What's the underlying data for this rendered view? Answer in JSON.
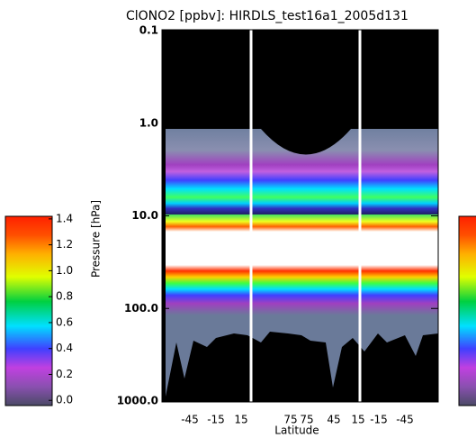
{
  "chart_data": {
    "type": "heatmap",
    "title": "ClONO2 [ppbv]: HIRDLS_test16a1_2005d131",
    "ylabel": "Pressure [hPa]",
    "xlabel": "Latitude",
    "ylog": true,
    "ylim": [
      1000,
      0.1
    ],
    "yticks": [
      {
        "value": 1000,
        "label": "1000.0"
      },
      {
        "value": 100,
        "label": "100.0"
      },
      {
        "value": 10,
        "label": "10.0"
      },
      {
        "value": 1,
        "label": "1.0"
      },
      0.1
    ],
    "xtick_labels": [
      "-45",
      "-15",
      "15",
      "75",
      "75",
      "45",
      "15",
      "-15",
      "-45"
    ],
    "colorbar": {
      "lim": [
        -0.04,
        1.42
      ],
      "ticks": [
        {
          "value": 0,
          "label": "0.0"
        },
        0.2,
        0.4,
        0.6,
        0.8,
        {
          "value": 1,
          "label": "1.0"
        },
        1.2,
        1.4
      ]
    }
  }
}
